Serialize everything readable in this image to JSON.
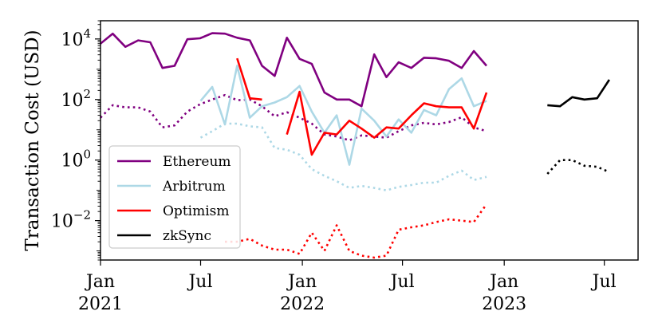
{
  "chart_data": {
    "type": "line",
    "ylabel": "Transaction Cost (USD)",
    "xlabel": "",
    "yscale": "log",
    "ylim": [
      0.0005,
      40000
    ],
    "xlim": [
      "2021-01-01",
      "2023-08-31"
    ],
    "grid": false,
    "legend_position": "lower-left",
    "x_ticks": [
      {
        "date": "2021-01-01",
        "line1": "Jan",
        "line2": "2021"
      },
      {
        "date": "2021-07-01",
        "line1": "Jul",
        "line2": ""
      },
      {
        "date": "2022-01-01",
        "line1": "Jan",
        "line2": "2022"
      },
      {
        "date": "2022-07-01",
        "line1": "Jul",
        "line2": ""
      },
      {
        "date": "2023-01-01",
        "line1": "Jan",
        "line2": "2023"
      },
      {
        "date": "2023-07-01",
        "line1": "Jul",
        "line2": ""
      }
    ],
    "y_ticks": [
      {
        "value": 0.01,
        "base": "10",
        "exp": "−2"
      },
      {
        "value": 1,
        "base": "10",
        "exp": "0"
      },
      {
        "value": 100,
        "base": "10",
        "exp": "2"
      },
      {
        "value": 10000,
        "base": "10",
        "exp": "4"
      }
    ],
    "series": [
      {
        "name": "Ethereum",
        "color": "#800080",
        "style": "solid",
        "points": [
          [
            "2021-01-01",
            7000
          ],
          [
            "2021-01-23",
            15000
          ],
          [
            "2021-02-15",
            5500
          ],
          [
            "2021-03-10",
            9000
          ],
          [
            "2021-04-01",
            7800
          ],
          [
            "2021-04-23",
            1100
          ],
          [
            "2021-05-15",
            1300
          ],
          [
            "2021-06-07",
            9800
          ],
          [
            "2021-06-30",
            10500
          ],
          [
            "2021-07-22",
            15500
          ],
          [
            "2021-08-14",
            15000
          ],
          [
            "2021-09-05",
            11000
          ],
          [
            "2021-09-28",
            9000
          ],
          [
            "2021-10-20",
            1300
          ],
          [
            "2021-11-12",
            600
          ],
          [
            "2021-12-04",
            11000
          ],
          [
            "2021-12-27",
            2200
          ],
          [
            "2022-01-18",
            1500
          ],
          [
            "2022-02-10",
            170
          ],
          [
            "2022-03-04",
            100
          ],
          [
            "2022-03-27",
            100
          ],
          [
            "2022-04-18",
            60
          ],
          [
            "2022-05-11",
            3100
          ],
          [
            "2022-06-02",
            550
          ],
          [
            "2022-06-24",
            1700
          ],
          [
            "2022-07-17",
            1100
          ],
          [
            "2022-08-09",
            2400
          ],
          [
            "2022-08-31",
            2300
          ],
          [
            "2022-09-23",
            1900
          ],
          [
            "2022-10-16",
            1100
          ],
          [
            "2022-11-07",
            4000
          ],
          [
            "2022-11-30",
            1300
          ]
        ]
      },
      {
        "name": "Ethereum (dotted)",
        "color": "#800080",
        "style": "dotted",
        "points": [
          [
            "2021-01-01",
            25
          ],
          [
            "2021-01-23",
            65
          ],
          [
            "2021-02-15",
            55
          ],
          [
            "2021-03-10",
            55
          ],
          [
            "2021-04-01",
            40
          ],
          [
            "2021-04-23",
            12
          ],
          [
            "2021-05-15",
            14
          ],
          [
            "2021-06-07",
            40
          ],
          [
            "2021-06-30",
            70
          ],
          [
            "2021-07-22",
            100
          ],
          [
            "2021-08-14",
            140
          ],
          [
            "2021-09-05",
            95
          ],
          [
            "2021-09-28",
            100
          ],
          [
            "2021-10-20",
            60
          ],
          [
            "2021-11-12",
            28
          ],
          [
            "2021-12-04",
            38
          ],
          [
            "2021-12-27",
            25
          ],
          [
            "2022-01-18",
            16
          ],
          [
            "2022-02-10",
            7
          ],
          [
            "2022-03-04",
            6
          ],
          [
            "2022-03-27",
            4.5
          ],
          [
            "2022-04-18",
            6.5
          ],
          [
            "2022-05-11",
            6
          ],
          [
            "2022-06-02",
            5.5
          ],
          [
            "2022-06-24",
            9
          ],
          [
            "2022-07-17",
            14
          ],
          [
            "2022-08-09",
            17
          ],
          [
            "2022-08-31",
            15
          ],
          [
            "2022-09-23",
            18
          ],
          [
            "2022-10-16",
            26
          ],
          [
            "2022-11-07",
            12
          ],
          [
            "2022-11-30",
            9
          ]
        ]
      },
      {
        "name": "Arbitrum",
        "color": "#add8e6",
        "style": "solid",
        "points": [
          [
            "2021-07-01",
            90
          ],
          [
            "2021-07-22",
            260
          ],
          [
            "2021-08-14",
            15
          ],
          [
            "2021-09-05",
            1300
          ],
          [
            "2021-09-28",
            25
          ],
          [
            "2021-10-20",
            60
          ],
          [
            "2021-11-12",
            80
          ],
          [
            "2021-12-04",
            120
          ],
          [
            "2021-12-27",
            280
          ],
          [
            "2022-01-18",
            40
          ],
          [
            "2022-02-10",
            8
          ],
          [
            "2022-03-04",
            30
          ],
          [
            "2022-03-27",
            0.7
          ],
          [
            "2022-04-18",
            50
          ],
          [
            "2022-05-11",
            20
          ],
          [
            "2022-06-02",
            6
          ],
          [
            "2022-06-24",
            22
          ],
          [
            "2022-07-17",
            8
          ],
          [
            "2022-08-09",
            45
          ],
          [
            "2022-08-31",
            30
          ],
          [
            "2022-09-23",
            220
          ],
          [
            "2022-10-16",
            500
          ],
          [
            "2022-11-07",
            60
          ],
          [
            "2022-11-30",
            90
          ]
        ]
      },
      {
        "name": "Arbitrum (dotted)",
        "color": "#add8e6",
        "style": "dotted",
        "points": [
          [
            "2021-07-01",
            5.5
          ],
          [
            "2021-07-22",
            9
          ],
          [
            "2021-08-14",
            16
          ],
          [
            "2021-09-05",
            16
          ],
          [
            "2021-09-28",
            13
          ],
          [
            "2021-10-20",
            12
          ],
          [
            "2021-11-12",
            2.5
          ],
          [
            "2021-12-04",
            2.2
          ],
          [
            "2021-12-27",
            1.5
          ],
          [
            "2022-01-18",
            0.5
          ],
          [
            "2022-02-10",
            0.3
          ],
          [
            "2022-03-04",
            0.2
          ],
          [
            "2022-03-27",
            0.12
          ],
          [
            "2022-04-18",
            0.14
          ],
          [
            "2022-05-11",
            0.12
          ],
          [
            "2022-06-02",
            0.1
          ],
          [
            "2022-06-24",
            0.13
          ],
          [
            "2022-07-17",
            0.15
          ],
          [
            "2022-08-09",
            0.18
          ],
          [
            "2022-08-31",
            0.18
          ],
          [
            "2022-09-23",
            0.3
          ],
          [
            "2022-10-16",
            0.45
          ],
          [
            "2022-11-07",
            0.22
          ],
          [
            "2022-11-30",
            0.28
          ]
        ]
      },
      {
        "name": "Optimism",
        "color": "#ff0000",
        "style": "solid",
        "segments": [
          [
            [
              "2021-09-05",
              2300
            ],
            [
              "2021-09-28",
              110
            ],
            [
              "2021-10-20",
              100
            ]
          ],
          [
            [
              "2021-12-04",
              7
            ],
            [
              "2021-12-27",
              180
            ],
            [
              "2022-01-18",
              1.5
            ],
            [
              "2022-02-10",
              8
            ],
            [
              "2022-03-04",
              7
            ],
            [
              "2022-03-27",
              20
            ],
            [
              "2022-04-18",
              11
            ],
            [
              "2022-05-11",
              5.5
            ],
            [
              "2022-06-02",
              12
            ],
            [
              "2022-06-24",
              11
            ],
            [
              "2022-07-17",
              30
            ],
            [
              "2022-08-09",
              75
            ],
            [
              "2022-08-31",
              60
            ],
            [
              "2022-09-23",
              55
            ],
            [
              "2022-10-16",
              55
            ],
            [
              "2022-11-07",
              11
            ],
            [
              "2022-11-30",
              170
            ]
          ]
        ]
      },
      {
        "name": "Optimism (dotted)",
        "color": "#ff0000",
        "style": "dotted",
        "points": [
          [
            "2021-08-14",
            0.002
          ],
          [
            "2021-09-05",
            0.002
          ],
          [
            "2021-09-28",
            0.0025
          ],
          [
            "2021-10-20",
            0.0015
          ],
          [
            "2021-11-12",
            0.0011
          ],
          [
            "2021-12-04",
            0.0011
          ],
          [
            "2021-12-27",
            0.0008
          ],
          [
            "2022-01-18",
            0.004
          ],
          [
            "2022-02-10",
            0.001
          ],
          [
            "2022-03-04",
            0.007
          ],
          [
            "2022-03-27",
            0.001
          ],
          [
            "2022-04-18",
            0.0007
          ],
          [
            "2022-05-11",
            0.0006
          ],
          [
            "2022-06-02",
            0.0007
          ],
          [
            "2022-06-24",
            0.005
          ],
          [
            "2022-07-17",
            0.006
          ],
          [
            "2022-08-09",
            0.007
          ],
          [
            "2022-08-31",
            0.009
          ],
          [
            "2022-09-23",
            0.011
          ],
          [
            "2022-10-16",
            0.01
          ],
          [
            "2022-11-07",
            0.009
          ],
          [
            "2022-11-30",
            0.035
          ]
        ]
      },
      {
        "name": "zkSync",
        "color": "#000000",
        "style": "solid",
        "points": [
          [
            "2023-03-20",
            65
          ],
          [
            "2023-04-12",
            60
          ],
          [
            "2023-05-04",
            120
          ],
          [
            "2023-05-26",
            100
          ],
          [
            "2023-06-18",
            110
          ],
          [
            "2023-07-10",
            450
          ]
        ]
      },
      {
        "name": "zkSync (dotted)",
        "color": "#000000",
        "style": "dotted",
        "points": [
          [
            "2023-03-20",
            0.35
          ],
          [
            "2023-04-12",
            1.0
          ],
          [
            "2023-05-04",
            1.0
          ],
          [
            "2023-05-26",
            0.65
          ],
          [
            "2023-06-18",
            0.6
          ],
          [
            "2023-07-10",
            0.4
          ]
        ]
      }
    ],
    "legend": [
      {
        "label": "Ethereum",
        "color": "#800080"
      },
      {
        "label": "Arbitrum",
        "color": "#add8e6"
      },
      {
        "label": "Optimism",
        "color": "#ff0000"
      },
      {
        "label": "zkSync",
        "color": "#000000"
      }
    ]
  }
}
